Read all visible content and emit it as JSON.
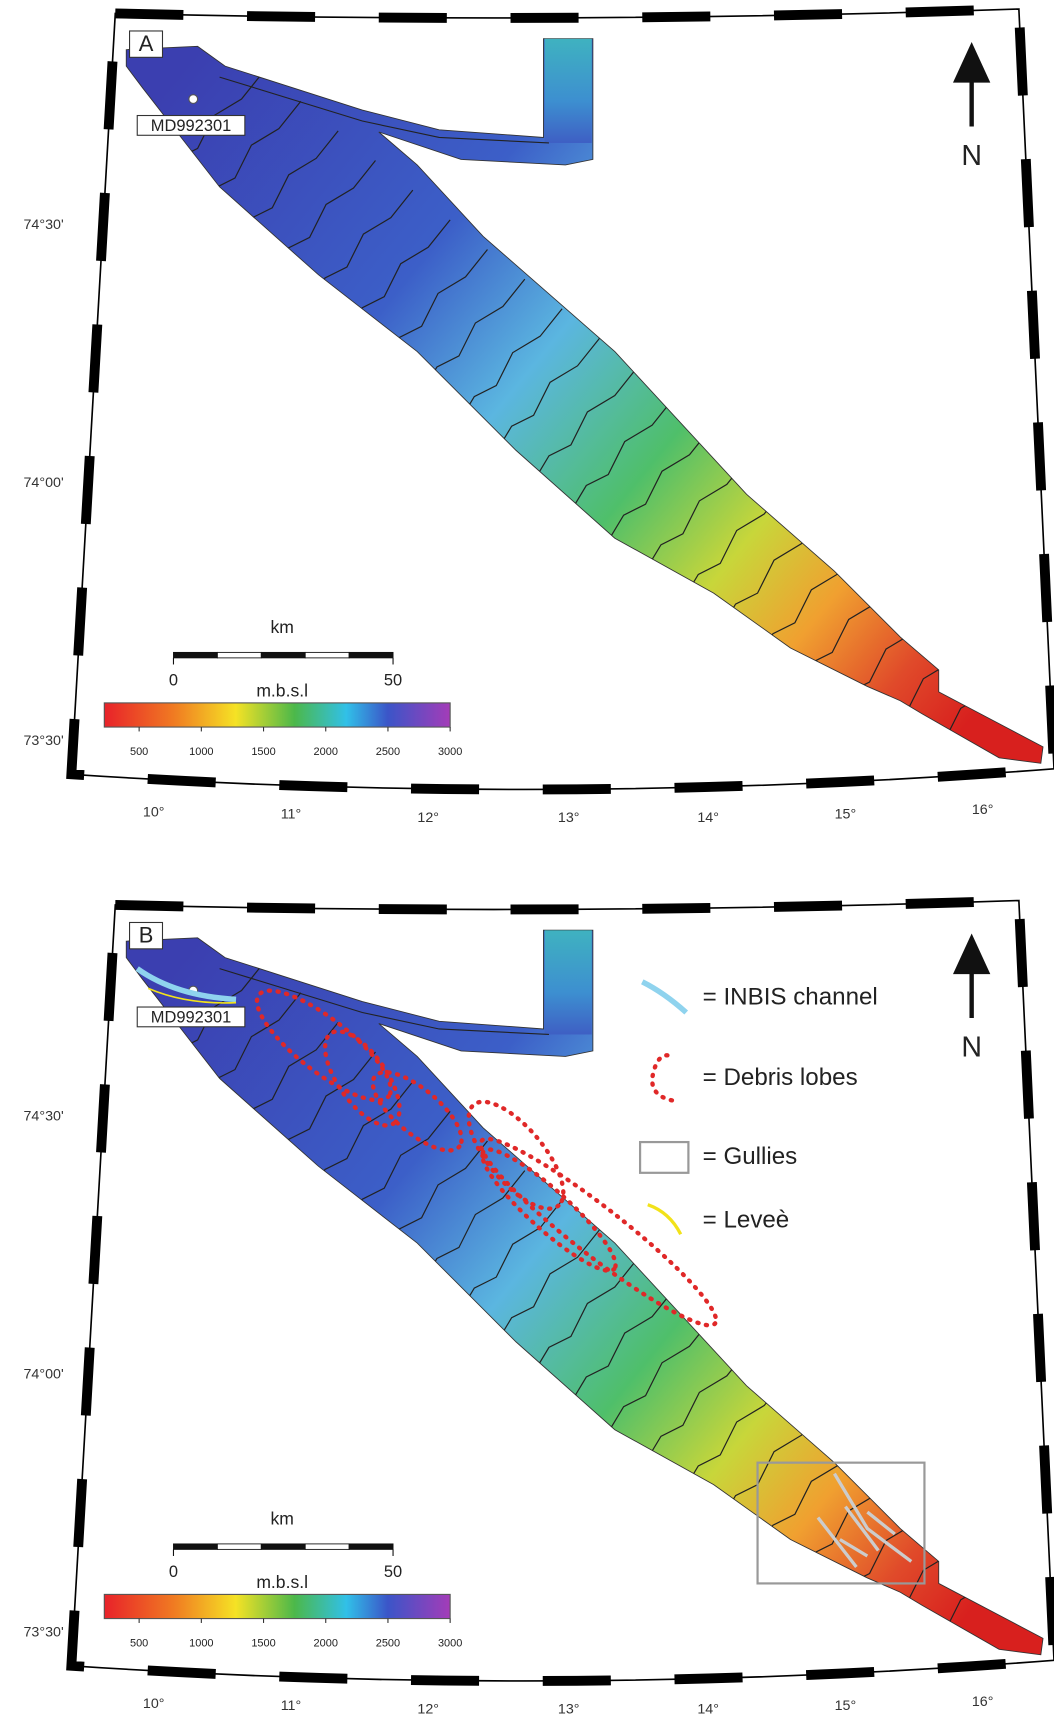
{
  "panels": [
    {
      "label": "A",
      "core": "MD992301",
      "lat_labels": [
        "74°30'",
        "74°00'",
        "73°30'"
      ],
      "lon_labels": [
        "10°",
        "11°",
        "12°",
        "13°",
        "14°",
        "15°",
        "16°"
      ],
      "north": "N",
      "scale_bar": {
        "unit": "km",
        "ticks": [
          0,
          50
        ]
      },
      "colorbar": {
        "label": "m.b.s.l",
        "lim": [
          220,
          3000
        ],
        "ticks": [
          500,
          1000,
          1500,
          2000,
          2500,
          3000
        ]
      }
    },
    {
      "label": "B",
      "core": "MD992301",
      "lat_labels": [
        "74°30'",
        "74°00'",
        "73°30'"
      ],
      "lon_labels": [
        "10°",
        "11°",
        "12°",
        "13°",
        "14°",
        "15°",
        "16°"
      ],
      "north": "N",
      "scale_bar": {
        "unit": "km",
        "ticks": [
          0,
          50
        ]
      },
      "colorbar": {
        "label": "m.b.s.l",
        "lim": [
          220,
          3000
        ],
        "ticks": [
          500,
          1000,
          1500,
          2000,
          2500,
          3000
        ]
      },
      "legend": [
        "= INBIS channel",
        "= Debris lobes",
        "= Gullies",
        "= Leveè"
      ]
    }
  ]
}
